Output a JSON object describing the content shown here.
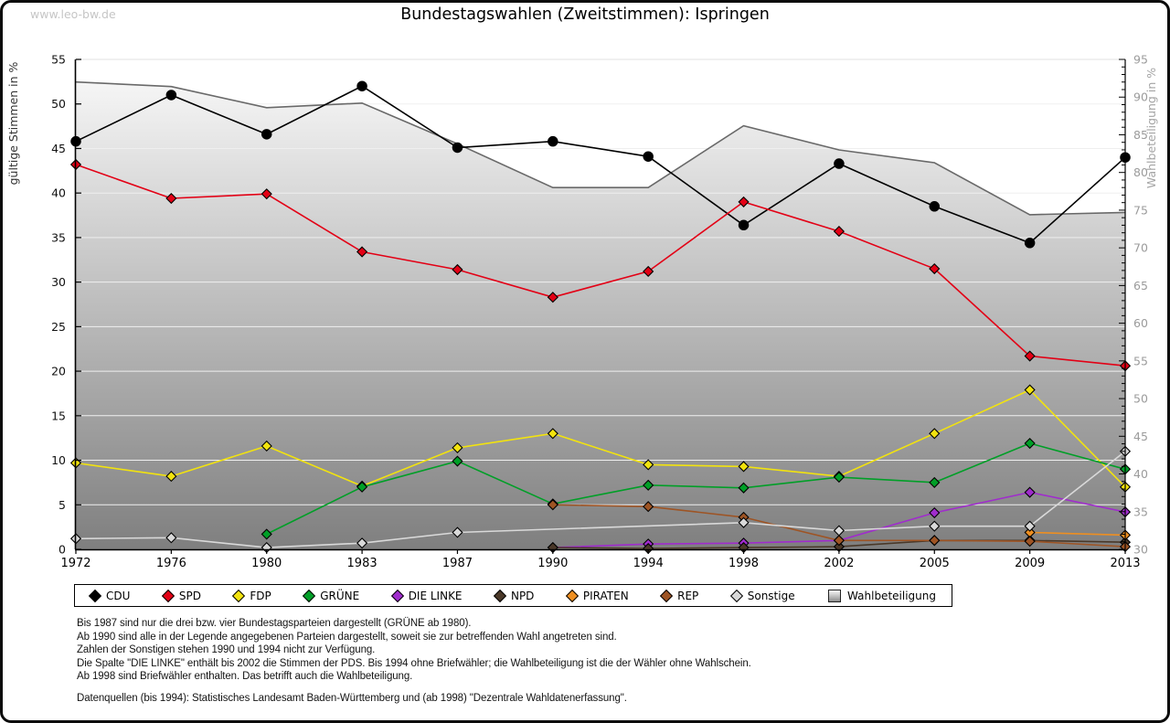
{
  "watermark": "www.leo-bw.de",
  "title": "Bundestagswahlen (Zweitstimmen): Ispringen",
  "chart_data": {
    "type": "line",
    "title": "Bundestagswahlen (Zweitstimmen): Ispringen",
    "ylabel_left": "gültige Stimmen in %",
    "ylabel_right": "Wahlbeteiligung in %",
    "x_categories": [
      1972,
      1976,
      1980,
      1983,
      1987,
      1990,
      1994,
      1998,
      2002,
      2005,
      2009,
      2013
    ],
    "ylim_left": [
      0,
      55
    ],
    "ylim_right": [
      30,
      95
    ],
    "left_tick_step": 5,
    "right_tick_step": 5,
    "grid": true,
    "legend_position": "bottom",
    "series": [
      {
        "name": "Wahlbeteiligung",
        "axis": "right",
        "type": "area",
        "marker": "square",
        "color": "#696969",
        "values": [
          92.0,
          91.4,
          88.6,
          89.2,
          83.8,
          78.0,
          78.0,
          86.2,
          83.0,
          81.3,
          74.4,
          74.7
        ]
      },
      {
        "name": "CDU",
        "axis": "left",
        "type": "line",
        "marker": "circle",
        "color": "#000000",
        "values": [
          45.8,
          51.0,
          46.6,
          52.0,
          45.1,
          45.8,
          44.1,
          36.4,
          43.3,
          38.5,
          34.4,
          44.0
        ]
      },
      {
        "name": "SPD",
        "axis": "left",
        "type": "line",
        "marker": "diamond",
        "color": "#e30015",
        "values": [
          43.2,
          39.4,
          39.9,
          33.4,
          31.4,
          28.3,
          31.2,
          39.0,
          35.7,
          31.5,
          21.7,
          20.6
        ]
      },
      {
        "name": "FDP",
        "axis": "left",
        "type": "line",
        "marker": "diamond",
        "color": "#f2e30e",
        "values": [
          9.7,
          8.2,
          11.6,
          7.1,
          11.4,
          13.0,
          9.5,
          9.3,
          8.2,
          13.0,
          17.9,
          7.0
        ]
      },
      {
        "name": "GRÜNE",
        "axis": "left",
        "type": "line",
        "marker": "diamond",
        "color": "#009f27",
        "values": [
          null,
          null,
          1.7,
          7.0,
          9.9,
          5.1,
          7.2,
          6.9,
          8.1,
          7.5,
          11.9,
          9.0
        ]
      },
      {
        "name": "DIE LINKE",
        "axis": "left",
        "type": "line",
        "marker": "diamond",
        "color": "#a02ccd",
        "values": [
          null,
          null,
          null,
          null,
          null,
          0.2,
          0.6,
          0.7,
          1.0,
          4.1,
          6.4,
          4.2
        ]
      },
      {
        "name": "NPD",
        "axis": "left",
        "type": "line",
        "marker": "diamond",
        "color": "#4a3828",
        "values": [
          null,
          null,
          null,
          null,
          null,
          0.2,
          0.1,
          0.2,
          0.3,
          1.0,
          1.0,
          0.8
        ]
      },
      {
        "name": "PIRATEN",
        "axis": "left",
        "type": "line",
        "marker": "diamond",
        "color": "#ee8f21",
        "values": [
          null,
          null,
          null,
          null,
          null,
          null,
          null,
          null,
          null,
          null,
          1.9,
          1.6
        ]
      },
      {
        "name": "REP",
        "axis": "left",
        "type": "line",
        "marker": "diamond",
        "color": "#9e5424",
        "values": [
          null,
          null,
          null,
          null,
          null,
          5.0,
          4.8,
          3.6,
          1.0,
          1.0,
          0.9,
          0.3
        ]
      },
      {
        "name": "Sonstige",
        "axis": "left",
        "type": "line",
        "marker": "diamond",
        "color": "#d9d9d9",
        "values": [
          1.2,
          1.3,
          0.2,
          0.7,
          1.9,
          null,
          null,
          3.0,
          2.1,
          2.6,
          2.6,
          11.0
        ]
      }
    ]
  },
  "legend": {
    "items": [
      "CDU",
      "SPD",
      "FDP",
      "GRÜNE",
      "DIE LINKE",
      "NPD",
      "PIRATEN",
      "REP",
      "Sonstige",
      "Wahlbeteiligung"
    ]
  },
  "footnotes": [
    "Bis 1987 sind nur die drei bzw. vier Bundestagsparteien dargestellt (GRÜNE ab 1980).",
    "Ab 1990 sind alle in der Legende angegebenen Parteien dargestellt, soweit sie zur betreffenden Wahl angetreten sind.",
    "Zahlen der Sonstigen stehen 1990 und 1994 nicht zur Verfügung.",
    "Die Spalte \"DIE LINKE\" enthält bis 2002 die Stimmen der PDS. Bis 1994 ohne Briefwähler; die Wahlbeteiligung ist die der Wähler ohne Wahlschein.",
    "Ab 1998 sind Briefwähler enthalten. Das betrifft auch die Wahlbeteiligung."
  ],
  "source_line": "Datenquellen (bis 1994): Statistisches Landesamt Baden-Württemberg und (ab 1998) \"Dezentrale Wahldatenerfassung\"."
}
